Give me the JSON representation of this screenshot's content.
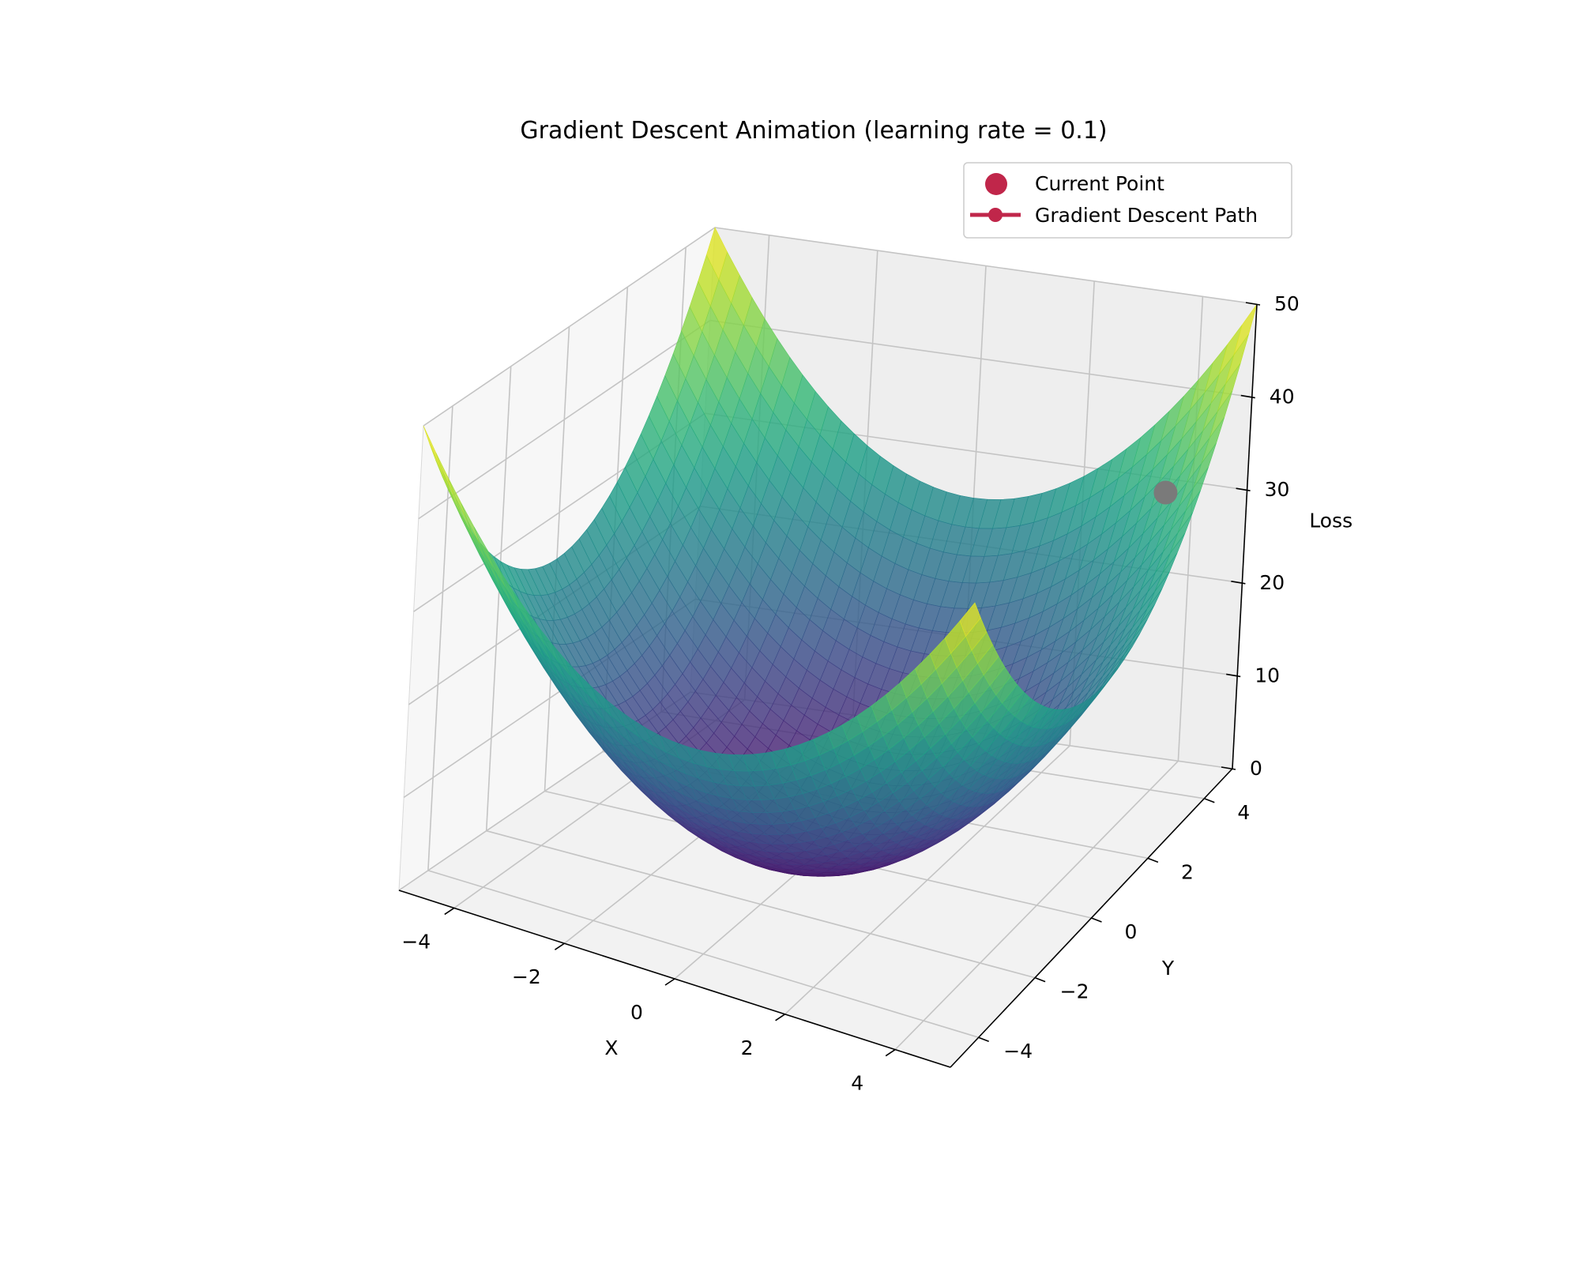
{
  "chart_data": {
    "type": "surface3d",
    "title": "Gradient Descent Animation (learning rate = 0.1)",
    "xlabel": "X",
    "ylabel": "Y",
    "zlabel": "Loss",
    "function": "x^2 + y^2",
    "colormap": "viridis",
    "xlim": [
      -5,
      5
    ],
    "ylim": [
      -5,
      5
    ],
    "zlim": [
      0,
      50
    ],
    "x_ticks": [
      -4,
      -2,
      0,
      2,
      4
    ],
    "y_ticks": [
      -4,
      -2,
      0,
      2,
      4
    ],
    "z_ticks": [
      0,
      10,
      20,
      30,
      40,
      50
    ],
    "x_tick_labels": [
      "−4",
      "−2",
      "0",
      "2",
      "4"
    ],
    "y_tick_labels": [
      "−4",
      "−2",
      "0",
      "2",
      "4"
    ],
    "z_tick_labels": [
      "0",
      "10",
      "20",
      "30",
      "40",
      "50"
    ],
    "grid": true,
    "current_point": {
      "x": 4.0,
      "y": 4.0,
      "z": 32.0
    },
    "legend": {
      "placement": "top-right",
      "entries": [
        "Current Point",
        "Gradient Descent Path"
      ],
      "color": "#C0264A"
    }
  }
}
